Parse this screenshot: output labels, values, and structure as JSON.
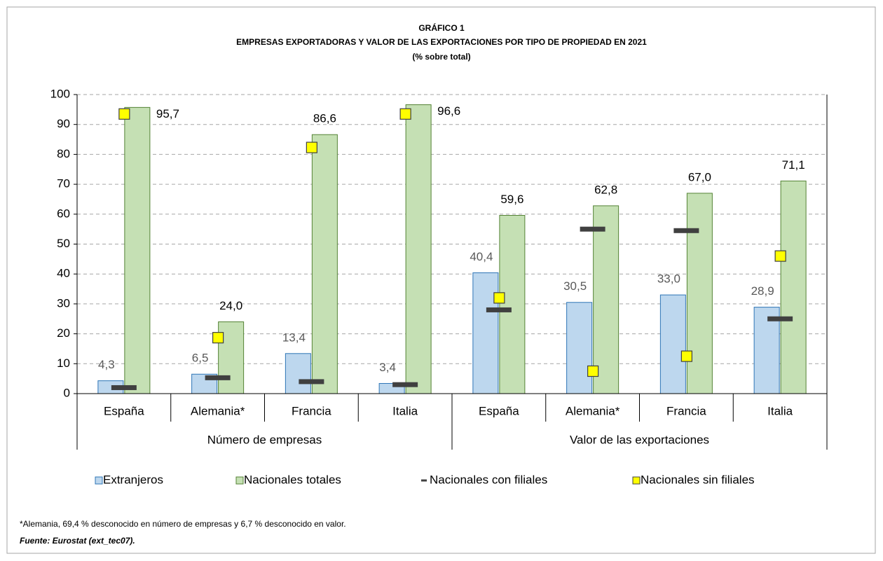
{
  "chart_data": {
    "type": "bar",
    "title": "GRÁFICO 1",
    "subtitle": "EMPRESAS EXPORTADORAS Y VALOR DE LAS EXPORTACIONES POR TIPO DE PROPIEDAD EN 2021",
    "unit": "(% sobre total)",
    "groups": [
      {
        "label": "Número de empresas",
        "categories": [
          "España",
          "Alemania*",
          "Francia",
          "Italia"
        ]
      },
      {
        "label": "Valor de las exportaciones",
        "categories": [
          "España",
          "Alemania*",
          "Francia",
          "Italia"
        ]
      }
    ],
    "series": [
      {
        "name": "Extranjeros",
        "kind": "bar",
        "color": "#bdd7ee",
        "stroke": "#2e75b6",
        "values": [
          4.3,
          6.5,
          13.4,
          3.4,
          40.4,
          30.5,
          33.0,
          28.9
        ],
        "value_labels": [
          "4,3",
          "6,5",
          "13,4",
          "3,4",
          "40,4",
          "30,5",
          "33,0",
          "28,9"
        ]
      },
      {
        "name": "Nacionales totales",
        "kind": "bar",
        "color": "#c5e0b4",
        "stroke": "#548235",
        "values": [
          95.7,
          24.0,
          86.6,
          96.6,
          59.6,
          62.8,
          67.0,
          71.1
        ],
        "value_labels": [
          "95,7",
          "24,0",
          "86,6",
          "96,6",
          "59,6",
          "62,8",
          "67,0",
          "71,1"
        ]
      },
      {
        "name": "Nacionales con filiales",
        "kind": "dash",
        "color": "#404040",
        "values": [
          2.0,
          5.3,
          4.0,
          3.0,
          28.0,
          55.0,
          54.5,
          25.0
        ]
      },
      {
        "name": "Nacionales sin filiales",
        "kind": "square",
        "color": "#ffff00",
        "stroke": "#404040",
        "values": [
          93.5,
          18.7,
          82.3,
          93.5,
          32.0,
          7.5,
          12.5,
          46.0
        ]
      }
    ],
    "ylim": [
      0,
      100
    ],
    "yticks": [
      0,
      10,
      20,
      30,
      40,
      50,
      60,
      70,
      80,
      90,
      100
    ],
    "grid": true,
    "notes": [
      "*Alemania, 69,4 % desconocido en número de empresas y 6,7 % desconocido en valor.",
      "Fuente: Eurostat (ext_tec07)."
    ]
  }
}
